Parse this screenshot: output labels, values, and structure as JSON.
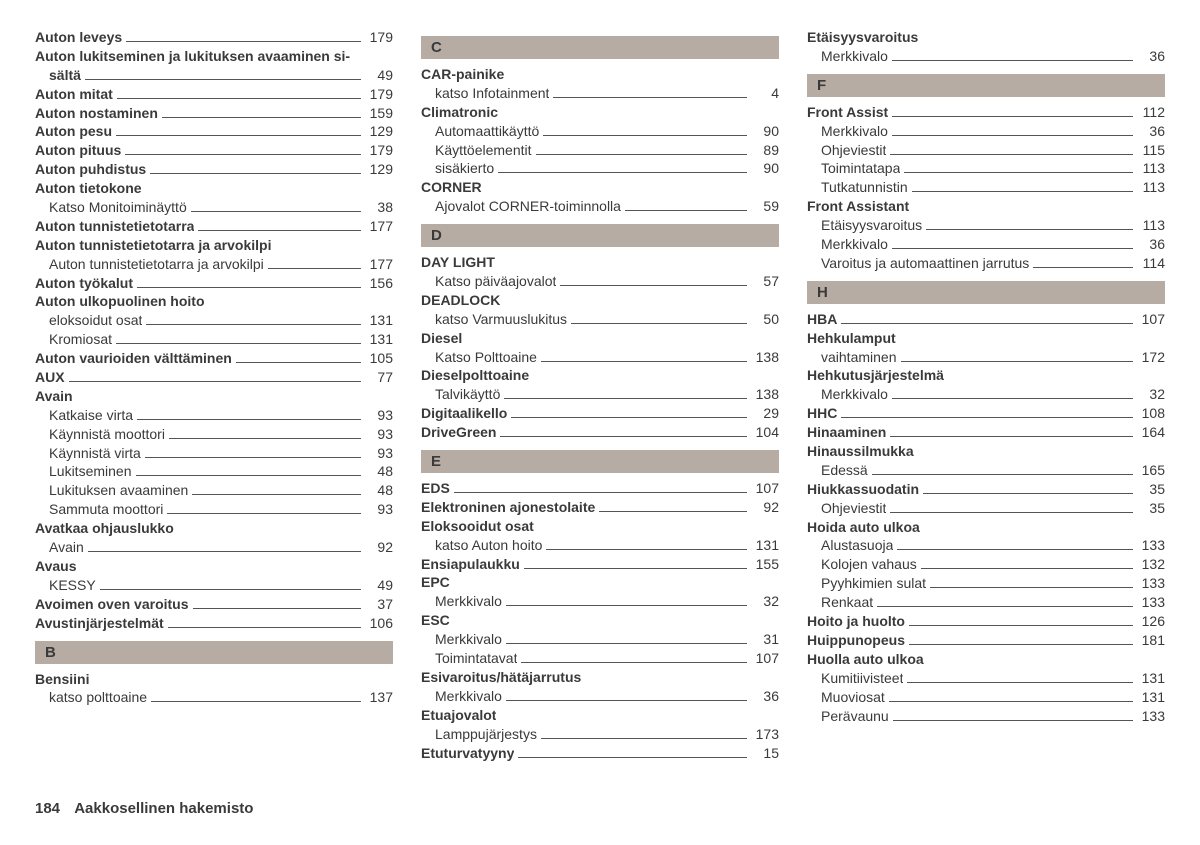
{
  "footer": {
    "pageNumber": "184",
    "title": "Aakkosellinen hakemisto"
  },
  "columns": [
    {
      "items": [
        {
          "type": "bold",
          "label": "Auton leveys",
          "page": "179"
        },
        {
          "type": "header",
          "label": "Auton lukitseminen ja lukituksen avaaminen si-"
        },
        {
          "type": "bold-cont",
          "label": "sältä",
          "page": "49"
        },
        {
          "type": "bold",
          "label": "Auton mitat",
          "page": "179"
        },
        {
          "type": "bold",
          "label": "Auton nostaminen",
          "page": "159"
        },
        {
          "type": "bold",
          "label": "Auton pesu",
          "page": "129"
        },
        {
          "type": "bold",
          "label": "Auton pituus",
          "page": "179"
        },
        {
          "type": "bold",
          "label": "Auton puhdistus",
          "page": "129"
        },
        {
          "type": "header",
          "label": "Auton tietokone"
        },
        {
          "type": "sub",
          "label": "Katso Monitoiminäyttö",
          "page": "38"
        },
        {
          "type": "bold",
          "label": "Auton tunnistetietotarra",
          "page": "177"
        },
        {
          "type": "header",
          "label": "Auton tunnistetietotarra ja arvokilpi"
        },
        {
          "type": "sub",
          "label": "Auton tunnistetietotarra ja arvokilpi",
          "page": "177"
        },
        {
          "type": "bold",
          "label": "Auton työkalut",
          "page": "156"
        },
        {
          "type": "header",
          "label": "Auton ulkopuolinen hoito"
        },
        {
          "type": "sub",
          "label": "eloksoidut osat",
          "page": "131"
        },
        {
          "type": "sub",
          "label": "Kromiosat",
          "page": "131"
        },
        {
          "type": "bold",
          "label": "Auton vaurioiden välttäminen",
          "page": "105"
        },
        {
          "type": "bold",
          "label": "AUX",
          "page": "77"
        },
        {
          "type": "header",
          "label": "Avain"
        },
        {
          "type": "sub",
          "label": "Katkaise virta",
          "page": "93"
        },
        {
          "type": "sub",
          "label": "Käynnistä moottori",
          "page": "93"
        },
        {
          "type": "sub",
          "label": "Käynnistä virta",
          "page": "93"
        },
        {
          "type": "sub",
          "label": "Lukitseminen",
          "page": "48"
        },
        {
          "type": "sub",
          "label": "Lukituksen avaaminen",
          "page": "48"
        },
        {
          "type": "sub",
          "label": "Sammuta moottori",
          "page": "93"
        },
        {
          "type": "header",
          "label": "Avatkaa ohjauslukko"
        },
        {
          "type": "sub",
          "label": "Avain",
          "page": "92"
        },
        {
          "type": "header",
          "label": "Avaus"
        },
        {
          "type": "sub",
          "label": "KESSY",
          "page": "49"
        },
        {
          "type": "bold",
          "label": "Avoimen oven varoitus",
          "page": "37"
        },
        {
          "type": "bold",
          "label": "Avustinjärjestelmät",
          "page": "106"
        },
        {
          "type": "letter",
          "label": "B"
        },
        {
          "type": "header",
          "label": "Bensiini"
        },
        {
          "type": "sub",
          "label": "katso polttoaine",
          "page": "137"
        }
      ]
    },
    {
      "items": [
        {
          "type": "letter",
          "label": "C"
        },
        {
          "type": "header",
          "label": "CAR-painike"
        },
        {
          "type": "sub",
          "label": "katso Infotainment",
          "page": "4"
        },
        {
          "type": "header",
          "label": "Climatronic"
        },
        {
          "type": "sub",
          "label": "Automaattikäyttö",
          "page": "90"
        },
        {
          "type": "sub",
          "label": "Käyttöelementit",
          "page": "89"
        },
        {
          "type": "sub",
          "label": "sisäkierto",
          "page": "90"
        },
        {
          "type": "header",
          "label": "CORNER"
        },
        {
          "type": "sub",
          "label": "Ajovalot CORNER-toiminnolla",
          "page": "59"
        },
        {
          "type": "letter",
          "label": "D"
        },
        {
          "type": "header",
          "label": "DAY LIGHT"
        },
        {
          "type": "sub",
          "label": "Katso päiväajovalot",
          "page": "57"
        },
        {
          "type": "header",
          "label": "DEADLOCK"
        },
        {
          "type": "sub",
          "label": "katso Varmuuslukitus",
          "page": "50"
        },
        {
          "type": "header",
          "label": "Diesel"
        },
        {
          "type": "sub",
          "label": "Katso Polttoaine",
          "page": "138"
        },
        {
          "type": "header",
          "label": "Dieselpolttoaine"
        },
        {
          "type": "sub",
          "label": "Talvikäyttö",
          "page": "138"
        },
        {
          "type": "bold",
          "label": "Digitaalikello",
          "page": "29"
        },
        {
          "type": "bold",
          "label": "DriveGreen",
          "page": "104"
        },
        {
          "type": "letter",
          "label": "E"
        },
        {
          "type": "bold",
          "label": "EDS",
          "page": "107"
        },
        {
          "type": "bold",
          "label": "Elektroninen ajonestolaite",
          "page": "92"
        },
        {
          "type": "header",
          "label": "Eloksooidut osat"
        },
        {
          "type": "sub",
          "label": "katso Auton hoito",
          "page": "131"
        },
        {
          "type": "bold",
          "label": "Ensiapulaukku",
          "page": "155"
        },
        {
          "type": "header",
          "label": "EPC"
        },
        {
          "type": "sub",
          "label": "Merkkivalo",
          "page": "32"
        },
        {
          "type": "header",
          "label": "ESC"
        },
        {
          "type": "sub",
          "label": "Merkkivalo",
          "page": "31"
        },
        {
          "type": "sub",
          "label": "Toimintatavat",
          "page": "107"
        },
        {
          "type": "header",
          "label": "Esivaroitus/hätäjarrutus"
        },
        {
          "type": "sub",
          "label": "Merkkivalo",
          "page": "36"
        },
        {
          "type": "header",
          "label": "Etuajovalot"
        },
        {
          "type": "sub",
          "label": "Lamppujärjestys",
          "page": "173"
        },
        {
          "type": "bold",
          "label": "Etuturvatyyny",
          "page": "15"
        }
      ]
    },
    {
      "items": [
        {
          "type": "header",
          "label": "Etäisyysvaroitus"
        },
        {
          "type": "sub",
          "label": "Merkkivalo",
          "page": "36"
        },
        {
          "type": "letter",
          "label": "F"
        },
        {
          "type": "bold",
          "label": "Front Assist",
          "page": "112"
        },
        {
          "type": "sub",
          "label": "Merkkivalo",
          "page": "36"
        },
        {
          "type": "sub",
          "label": "Ohjeviestit",
          "page": "115"
        },
        {
          "type": "sub",
          "label": "Toimintatapa",
          "page": "113"
        },
        {
          "type": "sub",
          "label": "Tutkatunnistin",
          "page": "113"
        },
        {
          "type": "header",
          "label": "Front Assistant"
        },
        {
          "type": "sub",
          "label": "Etäisyysvaroitus",
          "page": "113"
        },
        {
          "type": "sub",
          "label": "Merkkivalo",
          "page": "36"
        },
        {
          "type": "sub",
          "label": "Varoitus ja automaattinen jarrutus",
          "page": "114"
        },
        {
          "type": "letter",
          "label": "H"
        },
        {
          "type": "bold",
          "label": "HBA",
          "page": "107"
        },
        {
          "type": "header",
          "label": "Hehkulamput"
        },
        {
          "type": "sub",
          "label": "vaihtaminen",
          "page": "172"
        },
        {
          "type": "header",
          "label": "Hehkutusjärjestelmä"
        },
        {
          "type": "sub",
          "label": "Merkkivalo",
          "page": "32"
        },
        {
          "type": "bold",
          "label": "HHC",
          "page": "108"
        },
        {
          "type": "bold",
          "label": "Hinaaminen",
          "page": "164"
        },
        {
          "type": "header",
          "label": "Hinaussilmukka"
        },
        {
          "type": "sub",
          "label": "Edessä",
          "page": "165"
        },
        {
          "type": "bold",
          "label": "Hiukkassuodatin",
          "page": "35"
        },
        {
          "type": "sub",
          "label": "Ohjeviestit",
          "page": "35"
        },
        {
          "type": "header",
          "label": "Hoida auto ulkoa"
        },
        {
          "type": "sub",
          "label": "Alustasuoja",
          "page": "133"
        },
        {
          "type": "sub",
          "label": "Kolojen vahaus",
          "page": "132"
        },
        {
          "type": "sub",
          "label": "Pyyhkimien sulat",
          "page": "133"
        },
        {
          "type": "sub",
          "label": "Renkaat",
          "page": "133"
        },
        {
          "type": "bold",
          "label": "Hoito ja huolto",
          "page": "126"
        },
        {
          "type": "bold",
          "label": "Huippunopeus",
          "page": "181"
        },
        {
          "type": "header",
          "label": "Huolla auto ulkoa"
        },
        {
          "type": "sub",
          "label": "Kumitiivisteet",
          "page": "131"
        },
        {
          "type": "sub",
          "label": "Muoviosat",
          "page": "131"
        },
        {
          "type": "sub",
          "label": "Perävaunu",
          "page": "133"
        }
      ]
    }
  ]
}
